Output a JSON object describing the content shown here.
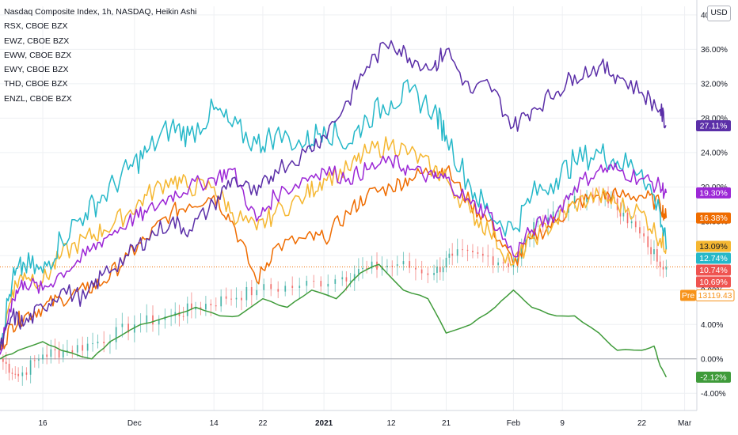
{
  "header": {
    "main_series": "Nasdaq Composite Index, 1h, NASDAQ, Heikin Ashi",
    "compare_series": [
      "RSX, CBOE BZX",
      "EWZ, CBOE BZX",
      "EWW, CBOE BZX",
      "EWY, CBOE BZX",
      "THD, CBOE BZX",
      "ENZL, CBOE BZX"
    ]
  },
  "currency_button": "USD",
  "colors": {
    "RSX": "#5b2fa8",
    "EWZ": "#26b8c9",
    "EWW": "#f5b731",
    "EWY": "#9c27d6",
    "THD": "#ef6c00",
    "ENZL": "#3f9b3a",
    "candle_up": "#26a69a",
    "candle_down": "#ef5350",
    "zero_line": "#a0a3ab",
    "grid": "#eef0f3",
    "pre_badge": "#f7931a"
  },
  "chart_data": {
    "type": "line",
    "xlabel": "",
    "ylabel": "",
    "x_domain": [
      "2020-11-09",
      "2021-03-03"
    ],
    "ylim": [
      -6,
      41
    ],
    "y_ticks": [
      "40.00%",
      "36.00%",
      "32.00%",
      "28.00%",
      "24.00%",
      "20.00%",
      "16.00%",
      "12.00%",
      "8.00%",
      "4.00%",
      "0.00%",
      "-4.00%"
    ],
    "y_tick_values": [
      40,
      36,
      32,
      28,
      24,
      20,
      16,
      12,
      8,
      4,
      0,
      -4
    ],
    "x_ticks": [
      "16",
      "Dec",
      "14",
      "22",
      "2021",
      "12",
      "21",
      "Feb",
      "9",
      "22",
      "Mar"
    ],
    "x_tick_dates": [
      "2020-11-16",
      "2020-12-01",
      "2020-12-14",
      "2020-12-22",
      "2021-01-01",
      "2021-01-12",
      "2021-01-21",
      "2021-02-01",
      "2021-02-09",
      "2021-02-22",
      "2021-03-01"
    ],
    "current_price_level": 10.69,
    "series": [
      {
        "name": "RSX, CBOE BZX",
        "key": "RSX",
        "x": [
          "2020-11-09",
          "2020-11-11",
          "2020-11-13",
          "2020-11-16",
          "2020-11-19",
          "2020-11-23",
          "2020-11-26",
          "2020-11-30",
          "2020-12-03",
          "2020-12-07",
          "2020-12-10",
          "2020-12-14",
          "2020-12-17",
          "2020-12-21",
          "2020-12-24",
          "2020-12-29",
          "2021-01-01",
          "2021-01-05",
          "2021-01-08",
          "2021-01-12",
          "2021-01-15",
          "2021-01-19",
          "2021-01-21",
          "2021-01-25",
          "2021-01-28",
          "2021-02-01",
          "2021-02-04",
          "2021-02-08",
          "2021-02-11",
          "2021-02-15",
          "2021-02-18",
          "2021-02-22",
          "2021-02-25",
          "2021-02-26"
        ],
        "y": [
          1,
          5,
          4,
          6,
          8,
          7,
          10,
          12,
          14,
          16,
          15,
          18,
          21,
          19,
          22,
          24,
          26,
          30,
          34,
          37,
          35,
          34,
          36,
          31,
          32,
          27,
          29,
          31,
          33,
          34,
          33,
          31,
          29,
          27.11
        ]
      },
      {
        "name": "EWZ, CBOE BZX",
        "key": "EWZ",
        "x": [
          "2020-11-09",
          "2020-11-11",
          "2020-11-13",
          "2020-11-16",
          "2020-11-19",
          "2020-11-23",
          "2020-11-26",
          "2020-11-30",
          "2020-12-03",
          "2020-12-07",
          "2020-12-10",
          "2020-12-14",
          "2020-12-17",
          "2020-12-21",
          "2020-12-24",
          "2020-12-29",
          "2021-01-01",
          "2021-01-05",
          "2021-01-08",
          "2021-01-12",
          "2021-01-15",
          "2021-01-19",
          "2021-01-21",
          "2021-01-25",
          "2021-01-28",
          "2021-02-01",
          "2021-02-04",
          "2021-02-08",
          "2021-02-11",
          "2021-02-15",
          "2021-02-18",
          "2021-02-22",
          "2021-02-25",
          "2021-02-26"
        ],
        "y": [
          2,
          9,
          11,
          10,
          14,
          17,
          19,
          22,
          24,
          27,
          26,
          29,
          27,
          25,
          26,
          25,
          27,
          25,
          28,
          30,
          31,
          29,
          26,
          20,
          17,
          15,
          19,
          21,
          23,
          24,
          23,
          22,
          17,
          12.74
        ]
      },
      {
        "name": "EWW, CBOE BZX",
        "key": "EWW",
        "x": [
          "2020-11-09",
          "2020-11-11",
          "2020-11-13",
          "2020-11-16",
          "2020-11-19",
          "2020-11-23",
          "2020-11-26",
          "2020-11-30",
          "2020-12-03",
          "2020-12-07",
          "2020-12-10",
          "2020-12-14",
          "2020-12-17",
          "2020-12-21",
          "2020-12-24",
          "2020-12-29",
          "2021-01-01",
          "2021-01-05",
          "2021-01-08",
          "2021-01-12",
          "2021-01-15",
          "2021-01-19",
          "2021-01-21",
          "2021-01-25",
          "2021-01-28",
          "2021-02-01",
          "2021-02-04",
          "2021-02-08",
          "2021-02-11",
          "2021-02-15",
          "2021-02-18",
          "2021-02-22",
          "2021-02-25",
          "2021-02-26"
        ],
        "y": [
          1,
          8,
          10,
          9,
          12,
          14,
          15,
          17,
          19,
          21,
          20,
          20,
          17,
          15,
          17,
          19,
          21,
          22,
          24,
          25,
          24,
          22,
          21,
          17,
          15,
          11,
          14,
          16,
          18,
          19,
          18,
          17,
          14,
          13.09
        ]
      },
      {
        "name": "EWY, CBOE BZX",
        "key": "EWY",
        "x": [
          "2020-11-09",
          "2020-11-11",
          "2020-11-13",
          "2020-11-16",
          "2020-11-19",
          "2020-11-23",
          "2020-11-26",
          "2020-11-30",
          "2020-12-03",
          "2020-12-07",
          "2020-12-10",
          "2020-12-14",
          "2020-12-17",
          "2020-12-21",
          "2020-12-24",
          "2020-12-29",
          "2021-01-01",
          "2021-01-05",
          "2021-01-08",
          "2021-01-12",
          "2021-01-15",
          "2021-01-19",
          "2021-01-21",
          "2021-01-25",
          "2021-01-28",
          "2021-02-01",
          "2021-02-04",
          "2021-02-08",
          "2021-02-11",
          "2021-02-15",
          "2021-02-18",
          "2021-02-22",
          "2021-02-25",
          "2021-02-26"
        ],
        "y": [
          0.5,
          7,
          9,
          8,
          10,
          12,
          14,
          16,
          17,
          19,
          20,
          21,
          22,
          16,
          19,
          21,
          22,
          21,
          22,
          23,
          22,
          21,
          21,
          18,
          17,
          12,
          15,
          17,
          20,
          22,
          22,
          21,
          20,
          19.3
        ]
      },
      {
        "name": "THD, CBOE BZX",
        "key": "THD",
        "x": [
          "2020-11-09",
          "2020-11-11",
          "2020-11-13",
          "2020-11-16",
          "2020-11-19",
          "2020-11-23",
          "2020-11-26",
          "2020-11-30",
          "2020-12-03",
          "2020-12-07",
          "2020-12-10",
          "2020-12-14",
          "2020-12-17",
          "2020-12-21",
          "2020-12-24",
          "2020-12-29",
          "2021-01-01",
          "2021-01-05",
          "2021-01-08",
          "2021-01-12",
          "2021-01-15",
          "2021-01-19",
          "2021-01-21",
          "2021-01-25",
          "2021-01-28",
          "2021-02-01",
          "2021-02-04",
          "2021-02-08",
          "2021-02-11",
          "2021-02-15",
          "2021-02-18",
          "2021-02-22",
          "2021-02-25",
          "2021-02-26"
        ],
        "y": [
          1,
          4,
          5,
          6,
          7,
          8,
          9,
          12,
          14,
          17,
          18,
          19,
          16,
          9,
          13,
          14,
          14,
          17,
          19,
          20,
          21,
          22,
          22,
          18,
          16,
          11,
          14,
          16,
          18,
          19,
          19,
          19,
          18,
          16.38
        ]
      },
      {
        "name": "ENZL, CBOE BZX",
        "key": "ENZL",
        "x": [
          "2020-11-09",
          "2020-11-12",
          "2020-11-16",
          "2020-11-19",
          "2020-11-24",
          "2020-11-27",
          "2020-12-02",
          "2020-12-07",
          "2020-12-11",
          "2020-12-15",
          "2020-12-18",
          "2020-12-22",
          "2020-12-26",
          "2020-12-30",
          "2021-01-03",
          "2021-01-07",
          "2021-01-10",
          "2021-01-14",
          "2021-01-18",
          "2021-01-21",
          "2021-01-25",
          "2021-01-29",
          "2021-02-01",
          "2021-02-04",
          "2021-02-08",
          "2021-02-11",
          "2021-02-15",
          "2021-02-18",
          "2021-02-22",
          "2021-02-24",
          "2021-02-25",
          "2021-02-26"
        ],
        "y": [
          0,
          1,
          2,
          1,
          0,
          2,
          4,
          5,
          6,
          5,
          5,
          7,
          6,
          8,
          7,
          10,
          11,
          8,
          7,
          3,
          4,
          6,
          8,
          6,
          5,
          5,
          3,
          1,
          1,
          1.5,
          -0.8,
          -2.12
        ]
      },
      {
        "name": "Nasdaq Composite Index, 1h, NASDAQ, Heikin Ashi",
        "key": "NASDAQ",
        "x": [
          "2020-11-09",
          "2020-11-12",
          "2020-11-16",
          "2020-11-20",
          "2020-11-25",
          "2020-12-01",
          "2020-12-07",
          "2020-12-11",
          "2020-12-16",
          "2020-12-21",
          "2020-12-28",
          "2021-01-04",
          "2021-01-08",
          "2021-01-13",
          "2021-01-19",
          "2021-01-22",
          "2021-01-27",
          "2021-02-01",
          "2021-02-05",
          "2021-02-10",
          "2021-02-16",
          "2021-02-19",
          "2021-02-23",
          "2021-02-26"
        ],
        "y": [
          0,
          -2,
          0.5,
          1,
          2,
          4,
          5,
          6,
          7,
          8,
          8.5,
          9.5,
          10.5,
          11,
          10,
          12,
          12,
          11,
          16,
          18,
          19,
          17,
          13,
          10.69
        ]
      }
    ],
    "badges": [
      {
        "key": "RSX",
        "label": "27.11%",
        "value": 27.11
      },
      {
        "key": "EWY",
        "label": "19.30%",
        "value": 19.3
      },
      {
        "key": "THD",
        "label": "16.38%",
        "value": 16.38
      },
      {
        "key": "EWW",
        "label": "13.09%",
        "value": 13.09
      },
      {
        "key": "EWZ",
        "label": "12.74%",
        "value": 12.74
      },
      {
        "key": "NASDAQ",
        "label": "10.74%",
        "value": 10.74
      },
      {
        "key": "NASDAQ_LAST",
        "label": "10.69%",
        "value": 10.69
      },
      {
        "key": "ENZL",
        "label": "-2.12%",
        "value": -2.12
      }
    ],
    "pre_badge": {
      "tag": "Pre",
      "label": "13119.43"
    }
  }
}
